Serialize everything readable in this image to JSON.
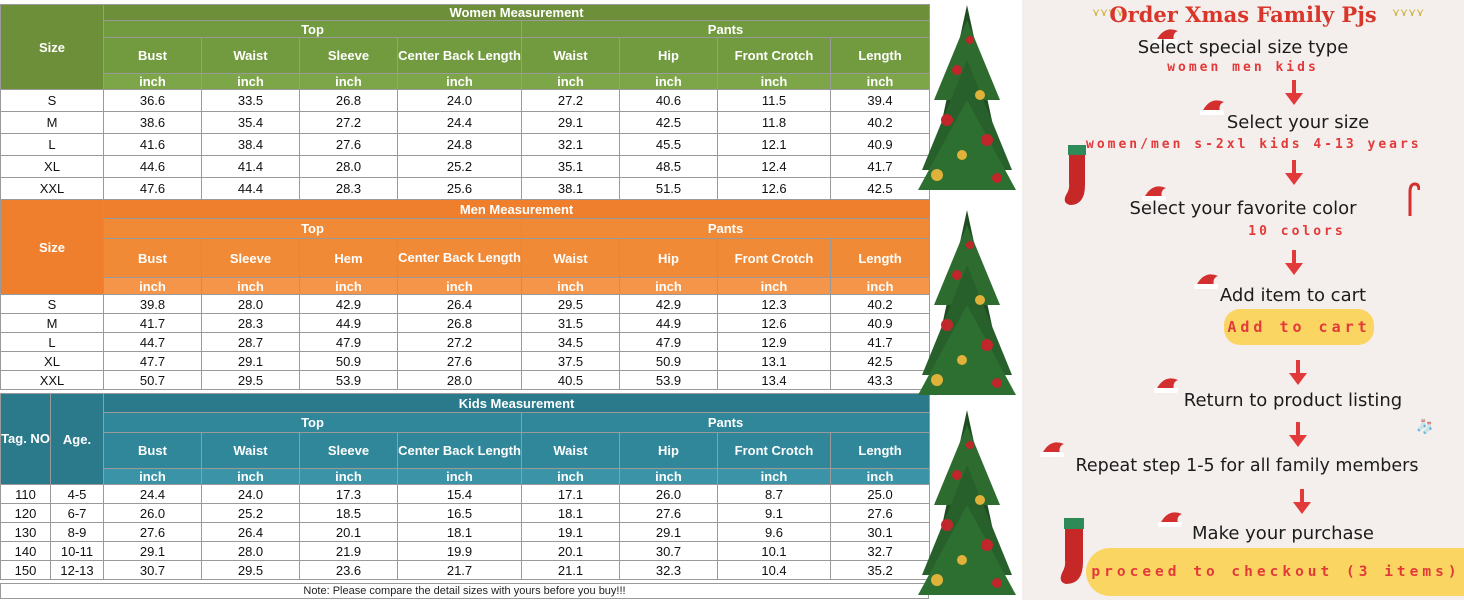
{
  "women": {
    "title": "Women Measurement",
    "size_label": "Size",
    "top_label": "Top",
    "pants_label": "Pants",
    "columns": [
      "Bust",
      "Waist",
      "Sleeve",
      "Center Back Length",
      "Waist",
      "Hip",
      "Front Crotch",
      "Length"
    ],
    "unit": "inch",
    "rows": [
      [
        "S",
        "36.6",
        "33.5",
        "26.8",
        "24.0",
        "27.2",
        "40.6",
        "11.5",
        "39.4"
      ],
      [
        "M",
        "38.6",
        "35.4",
        "27.2",
        "24.4",
        "29.1",
        "42.5",
        "11.8",
        "40.2"
      ],
      [
        "L",
        "41.6",
        "38.4",
        "27.6",
        "24.8",
        "32.1",
        "45.5",
        "12.1",
        "40.9"
      ],
      [
        "XL",
        "44.6",
        "41.4",
        "28.0",
        "25.2",
        "35.1",
        "48.5",
        "12.4",
        "41.7"
      ],
      [
        "XXL",
        "47.6",
        "44.4",
        "28.3",
        "25.6",
        "38.1",
        "51.5",
        "12.6",
        "42.5"
      ]
    ]
  },
  "men": {
    "title": "Men Measurement",
    "size_label": "Size",
    "top_label": "Top",
    "pants_label": "Pants",
    "columns": [
      "Bust",
      "Sleeve",
      "Hem",
      "Center Back Length",
      "Waist",
      "Hip",
      "Front Crotch",
      "Length"
    ],
    "unit": "inch",
    "rows": [
      [
        "S",
        "39.8",
        "28.0",
        "42.9",
        "26.4",
        "29.5",
        "42.9",
        "12.3",
        "40.2"
      ],
      [
        "M",
        "41.7",
        "28.3",
        "44.9",
        "26.8",
        "31.5",
        "44.9",
        "12.6",
        "40.9"
      ],
      [
        "L",
        "44.7",
        "28.7",
        "47.9",
        "27.2",
        "34.5",
        "47.9",
        "12.9",
        "41.7"
      ],
      [
        "XL",
        "47.7",
        "29.1",
        "50.9",
        "27.6",
        "37.5",
        "50.9",
        "13.1",
        "42.5"
      ],
      [
        "XXL",
        "50.7",
        "29.5",
        "53.9",
        "28.0",
        "40.5",
        "53.9",
        "13.4",
        "43.3"
      ]
    ]
  },
  "kids": {
    "title": "Kids Measurement",
    "tag_label": "Tag. NO",
    "age_label": "Age.",
    "top_label": "Top",
    "pants_label": "Pants",
    "columns": [
      "Bust",
      "Waist",
      "Sleeve",
      "Center Back Length",
      "Waist",
      "Hip",
      "Front Crotch",
      "Length"
    ],
    "unit": "inch",
    "rows": [
      [
        "110",
        "4-5",
        "24.4",
        "24.0",
        "17.3",
        "15.4",
        "17.1",
        "26.0",
        "8.7",
        "25.0"
      ],
      [
        "120",
        "6-7",
        "26.0",
        "25.2",
        "18.5",
        "16.5",
        "18.1",
        "27.6",
        "9.1",
        "27.6"
      ],
      [
        "130",
        "8-9",
        "27.6",
        "26.4",
        "20.1",
        "18.1",
        "19.1",
        "29.1",
        "9.6",
        "30.1"
      ],
      [
        "140",
        "10-11",
        "29.1",
        "28.0",
        "21.9",
        "19.9",
        "20.1",
        "30.7",
        "10.1",
        "32.7"
      ],
      [
        "150",
        "12-13",
        "30.7",
        "29.5",
        "23.6",
        "21.7",
        "21.1",
        "32.3",
        "10.4",
        "35.2"
      ]
    ]
  },
  "note": "Note: Please compare the detail sizes with yours before you buy!!!",
  "guide": {
    "title": "Order Xmas Family Pjs",
    "steps": [
      {
        "text": "Select special size type",
        "sub": "women men kids"
      },
      {
        "text": "Select your size",
        "sub": "women/men s-2xl kids 4-13 years"
      },
      {
        "text": "Select your favorite color",
        "sub": "10 colors"
      },
      {
        "text": "Add item to cart",
        "button": "Add to cart"
      },
      {
        "text": "Return to product listing"
      },
      {
        "text": "Repeat step 1-5 for all family members"
      },
      {
        "text": "Make your purchase",
        "button": "proceed to checkout (3 items)"
      }
    ]
  },
  "colors": {
    "women_header": "#729a3f",
    "men_header": "#f08a36",
    "kids_header": "#2f8799",
    "accent_red": "#e23a3a",
    "button_yellow": "#fbd562",
    "guide_bg": "#f4efec"
  },
  "icons": [
    "santa-hat-icon",
    "down-arrow-icon",
    "christmas-tree-icon",
    "stocking-icon",
    "candy-cane-icon",
    "string-lights-icon"
  ]
}
